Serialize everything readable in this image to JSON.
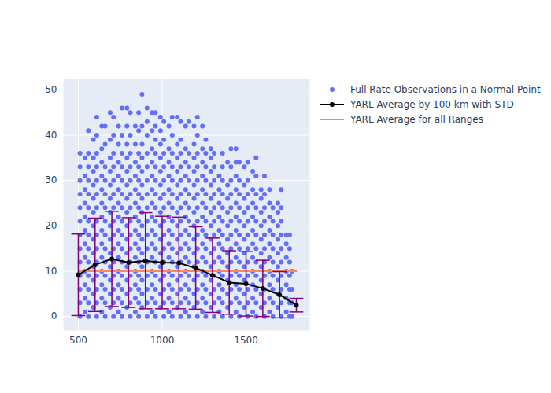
{
  "chart_data": {
    "type": "scatter",
    "xlim": [
      411,
      1880
    ],
    "xticks": [
      500,
      1000,
      1500
    ],
    "ylim": [
      -3.1,
      52.4
    ],
    "yticks": [
      0,
      10,
      20,
      30,
      40,
      50
    ],
    "grid": true,
    "legend": "right",
    "series": [
      {
        "name": "Full Rate Observations in a Normal Point",
        "type": "scatter",
        "marker": "circle",
        "color": "#636efa",
        "points": [
          {
            "x": 510,
            "y": [
              0,
              3,
              6,
              9,
              12,
              15,
              18,
              21,
              24,
              27,
              30,
              33,
              36
            ]
          },
          {
            "x": 540,
            "y": [
              1,
              4,
              7,
              10,
              13,
              16,
              19,
              22,
              25,
              28,
              31,
              35
            ]
          },
          {
            "x": 560,
            "y": [
              0,
              3,
              6,
              9,
              12,
              15,
              18,
              21,
              24,
              27,
              30,
              33,
              36,
              41
            ]
          },
          {
            "x": 590,
            "y": [
              2,
              5,
              8,
              11,
              14,
              17,
              20,
              23,
              26,
              29,
              32,
              35,
              39
            ]
          },
          {
            "x": 610,
            "y": [
              0,
              3,
              6,
              9,
              12,
              15,
              18,
              21,
              24,
              27,
              30,
              33,
              36,
              40,
              44
            ]
          },
          {
            "x": 640,
            "y": [
              1,
              4,
              7,
              10,
              13,
              16,
              19,
              22,
              25,
              28,
              31,
              34,
              37,
              42
            ]
          },
          {
            "x": 660,
            "y": [
              0,
              3,
              6,
              9,
              12,
              15,
              18,
              21,
              24,
              27,
              30,
              33,
              38,
              42
            ]
          },
          {
            "x": 690,
            "y": [
              2,
              5,
              8,
              11,
              14,
              17,
              20,
              23,
              26,
              29,
              32,
              35,
              39,
              45
            ]
          },
          {
            "x": 710,
            "y": [
              0,
              3,
              6,
              9,
              12,
              15,
              18,
              21,
              24,
              27,
              30,
              33,
              36,
              40,
              44
            ]
          },
          {
            "x": 740,
            "y": [
              1,
              4,
              7,
              10,
              13,
              16,
              19,
              22,
              25,
              28,
              31,
              34,
              38,
              42
            ]
          },
          {
            "x": 760,
            "y": [
              0,
              3,
              6,
              9,
              12,
              15,
              18,
              21,
              24,
              27,
              30,
              33,
              36,
              40,
              46
            ]
          },
          {
            "x": 790,
            "y": [
              2,
              5,
              8,
              11,
              14,
              17,
              20,
              23,
              26,
              29,
              32,
              35,
              38,
              42,
              46
            ]
          },
          {
            "x": 810,
            "y": [
              0,
              3,
              6,
              9,
              12,
              15,
              18,
              21,
              24,
              27,
              30,
              33,
              36,
              40,
              45
            ]
          },
          {
            "x": 840,
            "y": [
              1,
              4,
              7,
              10,
              13,
              16,
              19,
              22,
              25,
              28,
              31,
              34,
              38,
              42
            ]
          },
          {
            "x": 860,
            "y": [
              0,
              3,
              6,
              9,
              12,
              15,
              18,
              21,
              24,
              27,
              30,
              33,
              36,
              41,
              45
            ]
          },
          {
            "x": 880,
            "y": [
              2,
              5,
              8,
              11,
              14,
              17,
              20,
              23,
              26,
              29,
              32,
              35,
              38,
              42,
              49
            ]
          },
          {
            "x": 910,
            "y": [
              0,
              3,
              6,
              9,
              12,
              15,
              18,
              21,
              24,
              27,
              30,
              33,
              36,
              40,
              43,
              46
            ]
          },
          {
            "x": 940,
            "y": [
              1,
              4,
              7,
              10,
              13,
              16,
              19,
              22,
              25,
              28,
              31,
              34,
              37,
              41,
              45
            ]
          },
          {
            "x": 960,
            "y": [
              0,
              3,
              6,
              9,
              12,
              15,
              18,
              21,
              24,
              27,
              30,
              33,
              36,
              39,
              42,
              45
            ]
          },
          {
            "x": 990,
            "y": [
              2,
              5,
              8,
              11,
              14,
              17,
              20,
              23,
              26,
              29,
              32,
              35,
              38,
              41,
              44
            ]
          },
          {
            "x": 1010,
            "y": [
              0,
              3,
              6,
              9,
              12,
              15,
              18,
              21,
              24,
              27,
              30,
              33,
              36,
              39,
              43
            ]
          },
          {
            "x": 1040,
            "y": [
              1,
              4,
              7,
              10,
              13,
              16,
              19,
              22,
              25,
              28,
              31,
              34,
              37,
              42
            ]
          },
          {
            "x": 1060,
            "y": [
              0,
              3,
              6,
              9,
              12,
              15,
              18,
              21,
              24,
              27,
              30,
              33,
              36,
              40,
              44
            ]
          },
          {
            "x": 1090,
            "y": [
              2,
              5,
              8,
              11,
              14,
              17,
              20,
              23,
              26,
              29,
              32,
              35,
              38,
              44
            ]
          },
          {
            "x": 1110,
            "y": [
              0,
              3,
              6,
              9,
              12,
              15,
              18,
              21,
              24,
              27,
              30,
              33,
              36,
              39,
              43
            ]
          },
          {
            "x": 1140,
            "y": [
              1,
              4,
              7,
              10,
              13,
              16,
              19,
              22,
              25,
              28,
              31,
              34,
              37,
              42
            ]
          },
          {
            "x": 1160,
            "y": [
              0,
              3,
              6,
              9,
              12,
              15,
              18,
              21,
              24,
              27,
              30,
              33,
              36,
              43
            ]
          },
          {
            "x": 1190,
            "y": [
              2,
              5,
              8,
              11,
              14,
              17,
              20,
              23,
              26,
              29,
              32,
              35,
              38,
              42
            ]
          },
          {
            "x": 1210,
            "y": [
              0,
              3,
              6,
              9,
              12,
              15,
              18,
              21,
              24,
              27,
              30,
              33,
              36,
              40,
              44
            ]
          },
          {
            "x": 1240,
            "y": [
              1,
              4,
              7,
              10,
              13,
              16,
              19,
              22,
              25,
              28,
              31,
              34,
              37,
              42
            ]
          },
          {
            "x": 1260,
            "y": [
              0,
              3,
              6,
              9,
              12,
              15,
              18,
              21,
              24,
              27,
              30,
              33,
              36,
              39
            ]
          },
          {
            "x": 1290,
            "y": [
              2,
              5,
              8,
              11,
              14,
              17,
              20,
              23,
              26,
              29,
              32,
              35,
              37
            ]
          },
          {
            "x": 1310,
            "y": [
              0,
              3,
              6,
              9,
              12,
              15,
              18,
              21,
              24,
              27,
              30,
              33,
              36
            ]
          },
          {
            "x": 1340,
            "y": [
              1,
              4,
              7,
              10,
              13,
              16,
              19,
              22,
              25,
              28,
              31
            ]
          },
          {
            "x": 1360,
            "y": [
              0,
              3,
              6,
              9,
              12,
              15,
              18,
              21,
              24,
              27,
              30,
              33,
              36
            ]
          },
          {
            "x": 1390,
            "y": [
              2,
              5,
              8,
              11,
              14,
              17,
              20,
              23,
              26,
              29,
              34
            ]
          },
          {
            "x": 1410,
            "y": [
              0,
              3,
              6,
              9,
              12,
              15,
              18,
              21,
              24,
              27,
              30,
              33,
              37
            ]
          },
          {
            "x": 1440,
            "y": [
              1,
              4,
              7,
              10,
              13,
              16,
              19,
              22,
              25,
              28,
              31,
              34,
              37
            ]
          },
          {
            "x": 1460,
            "y": [
              0,
              3,
              6,
              9,
              12,
              15,
              18,
              21,
              24,
              27,
              30,
              34
            ]
          },
          {
            "x": 1490,
            "y": [
              2,
              5,
              8,
              11,
              14,
              17,
              20,
              23,
              26,
              29,
              33
            ]
          },
          {
            "x": 1510,
            "y": [
              0,
              3,
              6,
              9,
              12,
              15,
              18,
              21,
              24,
              27,
              30,
              34
            ]
          },
          {
            "x": 1540,
            "y": [
              1,
              4,
              7,
              10,
              13,
              16,
              19,
              22,
              25,
              28,
              32
            ]
          },
          {
            "x": 1560,
            "y": [
              0,
              3,
              6,
              9,
              12,
              15,
              18,
              21,
              24,
              27,
              31,
              35
            ]
          },
          {
            "x": 1590,
            "y": [
              2,
              5,
              8,
              11,
              14,
              17,
              20,
              23,
              26,
              28
            ]
          },
          {
            "x": 1610,
            "y": [
              0,
              3,
              6,
              9,
              12,
              15,
              18,
              21,
              24,
              27,
              31
            ]
          },
          {
            "x": 1640,
            "y": [
              1,
              4,
              7,
              10,
              13,
              16,
              19,
              22,
              25,
              28
            ]
          },
          {
            "x": 1660,
            "y": [
              0,
              3,
              6,
              9,
              12,
              15,
              18,
              21,
              24
            ]
          },
          {
            "x": 1690,
            "y": [
              2,
              5,
              8,
              11,
              14,
              17,
              20,
              23,
              25
            ]
          },
          {
            "x": 1710,
            "y": [
              0,
              3,
              6,
              9,
              12,
              15,
              18,
              21,
              24,
              28
            ]
          },
          {
            "x": 1740,
            "y": [
              1,
              4,
              7,
              10,
              13,
              16,
              18
            ]
          },
          {
            "x": 1760,
            "y": [
              0,
              3,
              6,
              9,
              12,
              15,
              18
            ]
          },
          {
            "x": 1775,
            "y": [
              0,
              3,
              6,
              10
            ]
          }
        ]
      },
      {
        "name": "YARL Average by 100 km with STD",
        "type": "line",
        "marker": "circle",
        "color": "#000000",
        "x": [
          500,
          600,
          700,
          800,
          900,
          1000,
          1100,
          1200,
          1300,
          1400,
          1500,
          1600,
          1700,
          1800
        ],
        "values": [
          9.2,
          11.4,
          12.7,
          11.9,
          12.3,
          11.9,
          11.8,
          10.7,
          9.1,
          7.5,
          7.2,
          6.2,
          4.8,
          2.5
        ],
        "std": [
          9.0,
          10.3,
          10.5,
          9.9,
          10.6,
          10.2,
          10.1,
          9.1,
          8.2,
          7.0,
          7.1,
          6.2,
          5.1,
          1.5
        ]
      },
      {
        "name": "YARL Average for all Ranges",
        "type": "line",
        "color": "#f58a5c",
        "x": [
          500,
          1800
        ],
        "values": [
          10,
          10
        ]
      }
    ]
  }
}
